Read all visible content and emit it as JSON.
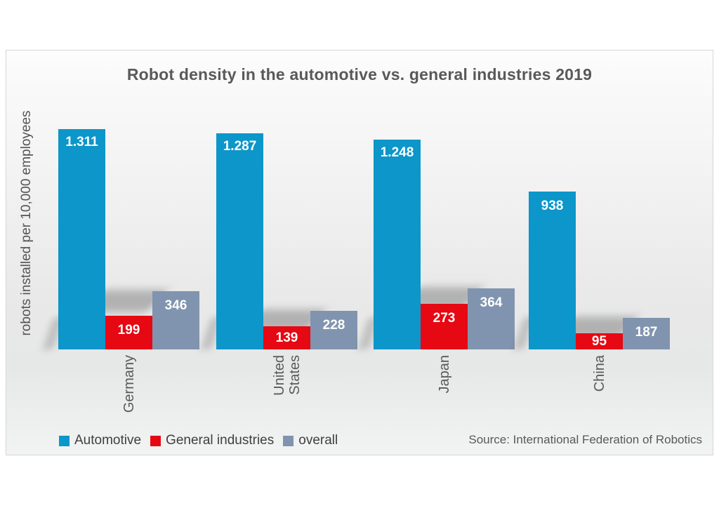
{
  "chart_data": {
    "type": "bar",
    "title": "Robot density in the automotive vs. general industries 2019",
    "ylabel": "robots installed per 10,000 employees",
    "xlabel": "",
    "source": "Source: International Federation of Robotics",
    "categories": [
      "Germany",
      "United States",
      "Japan",
      "China"
    ],
    "series": [
      {
        "name": "Automotive",
        "color": "#0c96c9",
        "values": [
          1311,
          1287,
          1248,
          938
        ],
        "value_labels": [
          "1.311",
          "1.287",
          "1.248",
          "938"
        ]
      },
      {
        "name": "General industries",
        "color": "#e60812",
        "values": [
          199,
          139,
          273,
          95
        ],
        "value_labels": [
          "199",
          "139",
          "273",
          "95"
        ]
      },
      {
        "name": "overall",
        "color": "#8094af",
        "values": [
          346,
          228,
          364,
          187
        ],
        "value_labels": [
          "346",
          "228",
          "364",
          "187"
        ]
      }
    ],
    "legend_position": "bottom-left",
    "grid": false,
    "y_axis_ticks_visible": false,
    "ylim": [
      0,
      1400
    ],
    "colors": {
      "title_text": "#595959",
      "category_text": "#595959",
      "value_label_text": "#ffffff"
    }
  }
}
